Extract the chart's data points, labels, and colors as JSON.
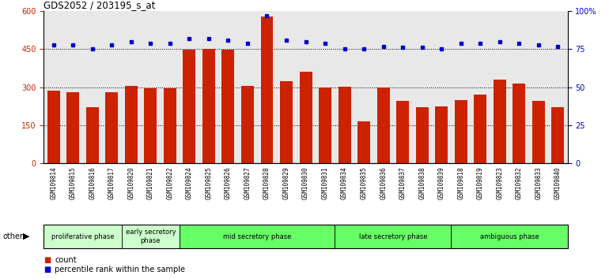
{
  "title": "GDS2052 / 203195_s_at",
  "samples": [
    "GSM109814",
    "GSM109815",
    "GSM109816",
    "GSM109817",
    "GSM109820",
    "GSM109821",
    "GSM109822",
    "GSM109824",
    "GSM109825",
    "GSM109826",
    "GSM109827",
    "GSM109828",
    "GSM109829",
    "GSM109830",
    "GSM109831",
    "GSM109834",
    "GSM109835",
    "GSM109836",
    "GSM109837",
    "GSM109838",
    "GSM109839",
    "GSM109818",
    "GSM109819",
    "GSM109823",
    "GSM109832",
    "GSM109833",
    "GSM109840"
  ],
  "counts": [
    285,
    280,
    220,
    280,
    305,
    295,
    295,
    448,
    452,
    448,
    305,
    580,
    325,
    360,
    300,
    302,
    165,
    300,
    245,
    220,
    225,
    250,
    272,
    330,
    313,
    245,
    222
  ],
  "percentiles": [
    78,
    78,
    75,
    78,
    80,
    79,
    79,
    82,
    82,
    81,
    79,
    97,
    81,
    80,
    79,
    75,
    75,
    77,
    76,
    76,
    75,
    79,
    79,
    80,
    79,
    78,
    77
  ],
  "phases": [
    {
      "label": "proliferative phase",
      "start": 0,
      "end": 4,
      "color": "#ccffcc"
    },
    {
      "label": "early secretory\nphase",
      "start": 4,
      "end": 7,
      "color": "#ccffcc"
    },
    {
      "label": "mid secretory phase",
      "start": 7,
      "end": 15,
      "color": "#66ff66"
    },
    {
      "label": "late secretory phase",
      "start": 15,
      "end": 21,
      "color": "#66ff66"
    },
    {
      "label": "ambiguous phase",
      "start": 21,
      "end": 27,
      "color": "#66ff66"
    }
  ],
  "bar_color": "#cc2200",
  "dot_color": "#0000cc",
  "ylim_left": [
    0,
    600
  ],
  "ylim_right": [
    0,
    100
  ],
  "yticks_left": [
    0,
    150,
    300,
    450,
    600
  ],
  "yticks_right": [
    0,
    25,
    50,
    75,
    100
  ],
  "grid_dotted_values": [
    150,
    300,
    450
  ],
  "plot_bg_color": "#e8e8e8",
  "tick_area_bg": "#d0d0d0"
}
